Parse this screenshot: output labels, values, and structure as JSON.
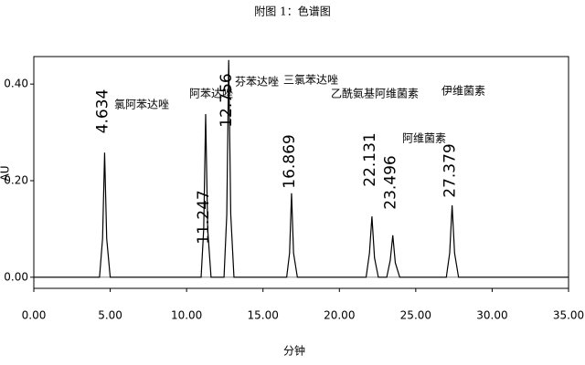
{
  "chart_data": {
    "type": "line",
    "title": "附图 1：色谱图",
    "xlabel": "分钟",
    "ylabel": "AU",
    "x": [
      0,
      4.3,
      4.5,
      4.634,
      4.77,
      5.0,
      10.95,
      11.12,
      11.247,
      11.38,
      11.6,
      12.45,
      12.63,
      12.756,
      12.89,
      13.1,
      16.55,
      16.74,
      16.869,
      17.0,
      17.25,
      21.75,
      21.97,
      22.131,
      22.3,
      22.55,
      23.1,
      23.33,
      23.496,
      23.66,
      23.95,
      27.0,
      27.22,
      27.379,
      27.54,
      27.8,
      35
    ],
    "series": [
      {
        "name": "AU",
        "color": "#000000",
        "values": [
          0,
          0,
          0.08,
          0.258,
          0.08,
          0,
          0,
          0.1,
          0.338,
          0.1,
          0,
          0,
          0.13,
          0.45,
          0.13,
          0,
          0,
          0.05,
          0.174,
          0.05,
          0,
          0,
          0.05,
          0.126,
          0.04,
          0,
          0,
          0.035,
          0.087,
          0.03,
          0,
          0,
          0.05,
          0.149,
          0.05,
          0,
          0
        ]
      }
    ],
    "peaks": [
      {
        "time": 4.634,
        "name": "氯阿苯达唑"
      },
      {
        "time": 11.247,
        "name": "阿苯达唑"
      },
      {
        "time": 12.756,
        "name": "芬苯达唑"
      },
      {
        "time": 16.869,
        "name": "三氯苯达唑"
      },
      {
        "time": 22.131,
        "name": "乙酰氨基阿维菌素"
      },
      {
        "time": 23.496,
        "name": "阿维菌素"
      },
      {
        "time": 27.379,
        "name": "伊维菌素"
      }
    ],
    "xlim": [
      0,
      35
    ],
    "ylim": [
      -0.023,
      0.457
    ],
    "xticks": [
      {
        "value": 0,
        "label": "0.00"
      },
      {
        "value": 5,
        "label": "5.00"
      },
      {
        "value": 10,
        "label": "10.00"
      },
      {
        "value": 15,
        "label": "15.00"
      },
      {
        "value": 20,
        "label": "20.00"
      },
      {
        "value": 25,
        "label": "25.00"
      },
      {
        "value": 30,
        "label": "30.00"
      },
      {
        "value": 35,
        "label": "35.00"
      }
    ],
    "yticks": [
      {
        "value": 0,
        "label": "0.00"
      },
      {
        "value": 0.2,
        "label": "0.20"
      },
      {
        "value": 0.4,
        "label": "0.40"
      }
    ]
  }
}
